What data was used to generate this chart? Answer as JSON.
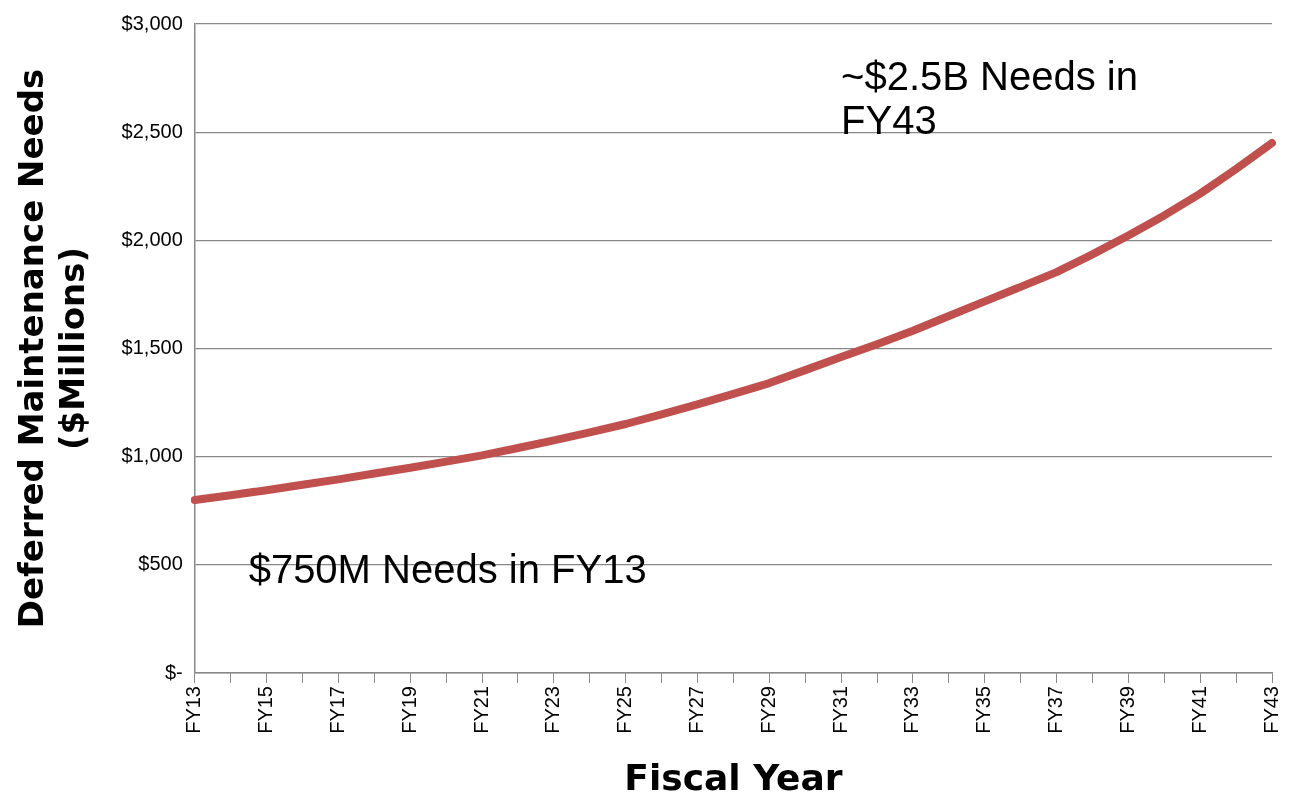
{
  "chart_data": {
    "type": "line",
    "xlabel": "Fiscal Year",
    "ylabel": "Deferred Maintenance Needs ($Millions)",
    "categories": [
      "FY13",
      null,
      "FY15",
      null,
      "FY17",
      null,
      "FY19",
      null,
      "FY21",
      null,
      "FY23",
      null,
      "FY25",
      null,
      "FY27",
      null,
      "FY29",
      null,
      "FY31",
      null,
      "FY33",
      null,
      "FY35",
      null,
      "FY37",
      null,
      "FY39",
      null,
      "FY41",
      null,
      "FY43"
    ],
    "series": [
      {
        "color": "#c0504d",
        "values": [
          800,
          822,
          845,
          870,
          895,
          922,
          949,
          977,
          1006,
          1040,
          1075,
          1112,
          1151,
          1195,
          1242,
          1290,
          1340,
          1400,
          1461,
          1520,
          1582,
          1650,
          1718,
          1785,
          1853,
          1935,
          2022,
          2115,
          2216,
          2330,
          2450
        ]
      }
    ],
    "ylim": [
      0,
      3000
    ],
    "yticks": [
      {
        "value": 0,
        "label": "$-"
      },
      {
        "value": 500,
        "label": "$500"
      },
      {
        "value": 1000,
        "label": "$1,000"
      },
      {
        "value": 1500,
        "label": "$1,500"
      },
      {
        "value": 2000,
        "label": "$2,000"
      },
      {
        "value": 2500,
        "label": "$2,500"
      },
      {
        "value": 3000,
        "label": "$3,000"
      }
    ],
    "grid": "y",
    "legend": false,
    "marker": "none",
    "line_style": "solid",
    "annotations": [
      "~$2.5B Needs in FY43",
      "$750M Needs in FY13"
    ]
  }
}
